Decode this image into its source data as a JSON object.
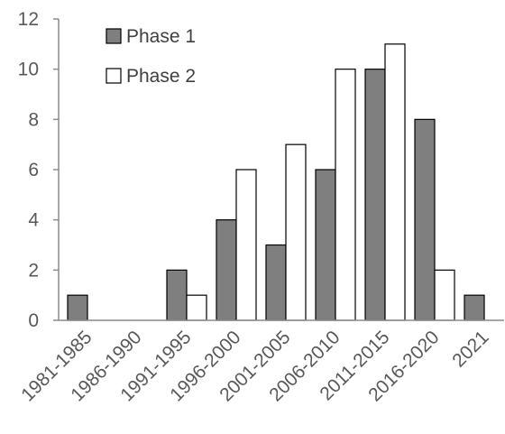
{
  "chart_data": {
    "type": "bar",
    "categories": [
      "1981-1985",
      "1986-1990",
      "1991-1995",
      "1996-2000",
      "2001-2005",
      "2006-2010",
      "2011-2015",
      "2016-2020",
      "2021"
    ],
    "series": [
      {
        "name": "Phase 1",
        "values": [
          1,
          0,
          2,
          4,
          3,
          6,
          10,
          8,
          1
        ],
        "color": "#7f7f7f"
      },
      {
        "name": "Phase 2",
        "values": [
          0,
          0,
          1,
          6,
          7,
          10,
          11,
          2,
          0
        ],
        "color": "#ffffff"
      }
    ],
    "ylim": [
      0,
      12
    ],
    "yticks": [
      0,
      2,
      4,
      6,
      8,
      10,
      12
    ],
    "title": "",
    "xlabel": "",
    "ylabel": "",
    "grid": false,
    "legend_position": "top-left"
  }
}
